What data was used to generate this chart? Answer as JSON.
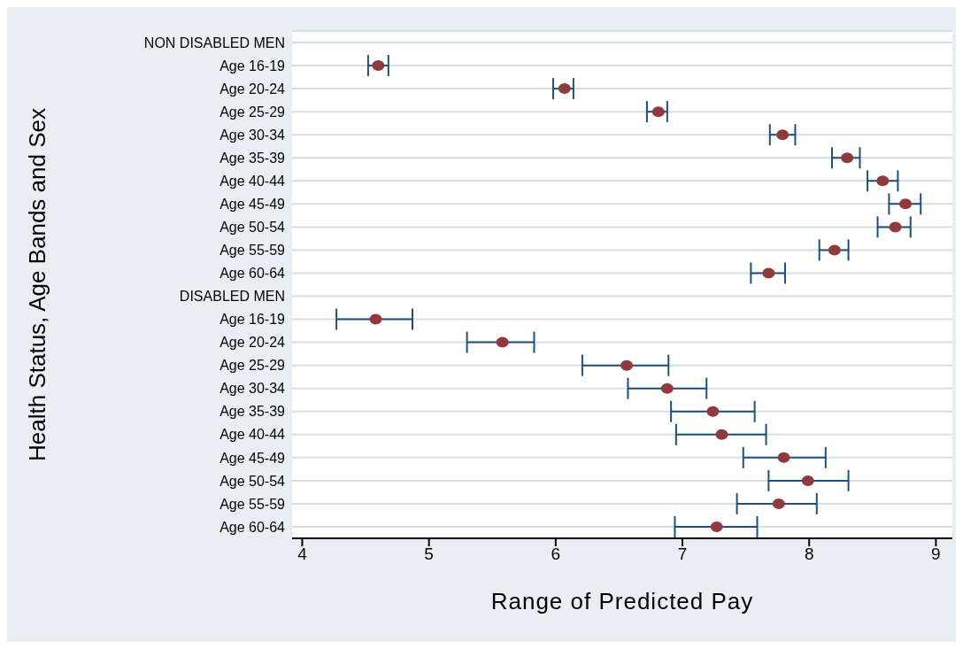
{
  "chart_data": {
    "type": "scatter",
    "orientation": "horizontal",
    "xlabel": "Range of Predicted Pay",
    "ylabel": "Health Status, Age Bands and Sex",
    "categories": [
      "NON DISABLED MEN",
      "Age 16-19",
      "Age 20-24",
      "Age 25-29",
      "Age 30-34",
      "Age 35-39",
      "Age 40-44",
      "Age 45-49",
      "Age 50-54",
      "Age 55-59",
      "Age 60-64",
      "DISABLED MEN",
      "Age 16-19",
      "Age 20-24",
      "Age 25-29",
      "Age 30-34",
      "Age 35-39",
      "Age 40-44",
      "Age 45-49",
      "Age 50-54",
      "Age 55-59",
      "Age 60-64"
    ],
    "values": [
      null,
      4.6,
      6.07,
      6.81,
      7.79,
      8.3,
      8.58,
      8.76,
      8.68,
      8.2,
      7.68,
      null,
      4.58,
      5.58,
      6.56,
      6.88,
      7.24,
      7.31,
      7.8,
      7.99,
      7.76,
      7.27
    ],
    "errors": [
      null,
      [
        4.52,
        4.68
      ],
      [
        5.98,
        6.14
      ],
      [
        6.72,
        6.88
      ],
      [
        7.69,
        7.89
      ],
      [
        8.18,
        8.4
      ],
      [
        8.46,
        8.7
      ],
      [
        8.63,
        8.88
      ],
      [
        8.54,
        8.8
      ],
      [
        8.08,
        8.31
      ],
      [
        7.54,
        7.81
      ],
      null,
      [
        4.27,
        4.87
      ],
      [
        5.3,
        5.83
      ],
      [
        6.21,
        6.89
      ],
      [
        6.57,
        7.19
      ],
      [
        6.91,
        7.57
      ],
      [
        6.95,
        7.66
      ],
      [
        7.48,
        8.13
      ],
      [
        7.68,
        8.31
      ],
      [
        7.43,
        8.06
      ],
      [
        6.94,
        7.59
      ]
    ],
    "color": "#903a3f",
    "xlim": [
      3.92,
      9.13
    ],
    "xticks": [
      4,
      5,
      6,
      7,
      8,
      9
    ],
    "grid": "y",
    "marker": "circle"
  }
}
